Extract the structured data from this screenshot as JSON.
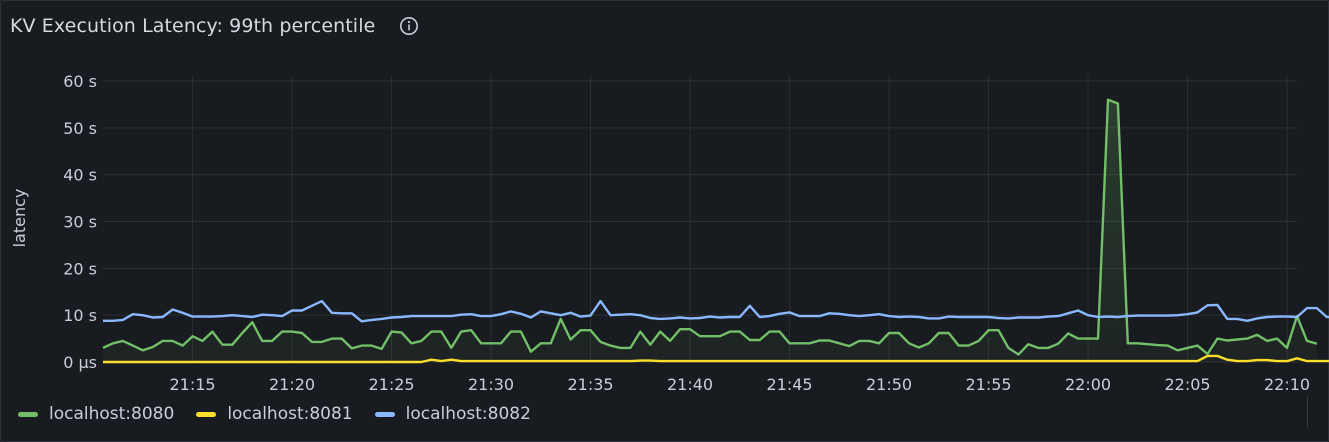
{
  "panel": {
    "title": "KV Execution Latency: 99th percentile",
    "info_icon": "info-circle-icon"
  },
  "colors": {
    "background": "#181b1f",
    "grid": "#2c2f35",
    "text": "#ccccdc"
  },
  "chart_data": {
    "type": "line",
    "title": "KV Execution Latency: 99th percentile",
    "ylabel": "latency",
    "xlabel": "",
    "x_start": "21:10:30",
    "x_end": "22:10:30",
    "interval_seconds": 30,
    "ylim": [
      0,
      60
    ],
    "yticks": [
      {
        "value": 0,
        "label": "0 µs"
      },
      {
        "value": 10,
        "label": "10 s"
      },
      {
        "value": 20,
        "label": "20 s"
      },
      {
        "value": 30,
        "label": "30 s"
      },
      {
        "value": 40,
        "label": "40 s"
      },
      {
        "value": 50,
        "label": "50 s"
      },
      {
        "value": 60,
        "label": "60 s"
      }
    ],
    "xticks": [
      "21:15",
      "21:20",
      "21:25",
      "21:30",
      "21:35",
      "21:40",
      "21:45",
      "21:50",
      "21:55",
      "22:00",
      "22:05",
      "22:10"
    ],
    "grid": true,
    "legend": "bottom-left",
    "series": [
      {
        "name": "localhost:8080",
        "color": "#73bf69",
        "fill": true,
        "values": [
          3.0,
          4.0,
          4.5,
          3.5,
          2.5,
          3.2,
          4.5,
          4.5,
          3.5,
          5.5,
          4.5,
          6.5,
          3.7,
          3.7,
          6.2,
          8.5,
          4.5,
          4.5,
          6.5,
          6.5,
          6.2,
          4.3,
          4.3,
          5.0,
          5.0,
          2.9,
          3.5,
          3.5,
          2.8,
          6.5,
          6.3,
          4.0,
          4.5,
          6.5,
          6.5,
          3.0,
          6.5,
          6.8,
          4.0,
          4.0,
          4.0,
          6.5,
          6.5,
          2.2,
          4.0,
          4.0,
          9.2,
          4.8,
          6.8,
          6.8,
          4.3,
          3.5,
          3.0,
          3.0,
          6.5,
          3.7,
          6.5,
          4.5,
          7.0,
          7.0,
          5.5,
          5.5,
          5.5,
          6.5,
          6.5,
          4.7,
          4.7,
          6.5,
          6.5,
          4.0,
          4.0,
          4.0,
          4.6,
          4.6,
          4.0,
          3.4,
          4.5,
          4.5,
          4.0,
          6.2,
          6.2,
          4.0,
          3.1,
          4.0,
          6.2,
          6.2,
          3.5,
          3.5,
          4.5,
          6.8,
          6.8,
          3.0,
          1.6,
          3.8,
          3.0,
          3.0,
          3.9,
          6.1,
          5.0,
          5.0,
          5.0,
          56.0,
          55.2,
          4.0,
          4.0,
          3.8,
          3.6,
          3.5,
          2.5,
          3.0,
          3.5,
          1.7,
          5.0,
          4.6,
          4.8,
          5.0,
          5.8,
          4.5,
          5.0,
          3.0,
          9.8,
          4.5,
          3.9
        ]
      },
      {
        "name": "localhost:8081",
        "color": "#fade2a",
        "fill": false,
        "values": [
          0,
          0,
          0,
          0,
          0,
          0,
          0,
          0,
          0,
          0,
          0,
          0,
          0,
          0,
          0,
          0,
          0,
          0,
          0,
          0,
          0,
          0,
          0,
          0,
          0,
          0,
          0,
          0,
          0,
          0,
          0,
          0,
          0,
          0.5,
          0.2,
          0.5,
          0.2,
          0.2,
          0.2,
          0.2,
          0.2,
          0.2,
          0.2,
          0.2,
          0.2,
          0.2,
          0.2,
          0.2,
          0.2,
          0.2,
          0.2,
          0.2,
          0.2,
          0.2,
          0.3,
          0.3,
          0.2,
          0.2,
          0.2,
          0.2,
          0.2,
          0.2,
          0.2,
          0.2,
          0.2,
          0.2,
          0.2,
          0.2,
          0.2,
          0.2,
          0.2,
          0.2,
          0.2,
          0.2,
          0.2,
          0.2,
          0.2,
          0.2,
          0.2,
          0.2,
          0.2,
          0.2,
          0.2,
          0.2,
          0.2,
          0.2,
          0.2,
          0.2,
          0.2,
          0.2,
          0.2,
          0.2,
          0.2,
          0.2,
          0.2,
          0.2,
          0.2,
          0.2,
          0.2,
          0.2,
          0.2,
          0.2,
          0.2,
          0.2,
          0.2,
          0.2,
          0.2,
          0.2,
          0.2,
          0.2,
          0.2,
          1.3,
          1.3,
          0.5,
          0.2,
          0.2,
          0.4,
          0.4,
          0.2,
          0.2,
          0.8,
          0.2,
          0.2,
          0.2,
          0.2,
          1.2,
          1.2,
          0.2,
          0.2,
          0.3,
          0.3,
          0.3,
          0.2,
          0.2,
          0.2,
          0.2,
          0.2,
          0.2,
          0.2,
          0.2,
          0.2,
          0.2,
          0.2,
          0.2,
          0.2,
          0.2,
          0.2,
          0.2,
          0.2,
          0.2,
          0.2,
          0.2,
          0.2,
          0.2
        ]
      },
      {
        "name": "localhost:8082",
        "color": "#8ab8ff",
        "fill": false,
        "values": [
          8.8,
          8.8,
          9.0,
          10.2,
          10.0,
          9.5,
          9.6,
          11.2,
          10.5,
          9.7,
          9.7,
          9.7,
          9.8,
          10.0,
          9.8,
          9.6,
          10.1,
          10.0,
          9.8,
          11.0,
          11.0,
          12.0,
          13.0,
          10.5,
          10.4,
          10.4,
          8.7,
          9.0,
          9.2,
          9.5,
          9.6,
          9.8,
          9.8,
          9.8,
          9.8,
          9.8,
          10.1,
          10.2,
          9.8,
          9.8,
          10.2,
          10.8,
          10.3,
          9.5,
          10.8,
          10.4,
          10.0,
          10.5,
          9.7,
          9.9,
          13.0,
          10.0,
          10.1,
          10.2,
          10.0,
          9.4,
          9.2,
          9.3,
          9.5,
          9.3,
          9.4,
          9.7,
          9.5,
          9.6,
          9.6,
          12.0,
          9.6,
          9.8,
          10.3,
          10.6,
          9.8,
          9.8,
          9.8,
          10.4,
          10.3,
          10.0,
          9.8,
          10.0,
          10.2,
          9.8,
          9.6,
          9.7,
          9.6,
          9.3,
          9.3,
          9.7,
          9.6,
          9.6,
          9.6,
          9.6,
          9.4,
          9.3,
          9.5,
          9.5,
          9.5,
          9.7,
          9.8,
          10.4,
          11.0,
          10.0,
          9.6,
          9.7,
          9.6,
          9.8,
          9.9,
          9.9,
          9.9,
          9.9,
          10.0,
          10.2,
          10.6,
          12.1,
          12.2,
          9.2,
          9.2,
          8.8,
          9.3,
          9.6,
          9.7,
          9.7,
          9.6,
          11.5,
          11.5,
          9.6,
          9.6,
          10.5,
          10.2,
          10.2
        ]
      }
    ]
  }
}
